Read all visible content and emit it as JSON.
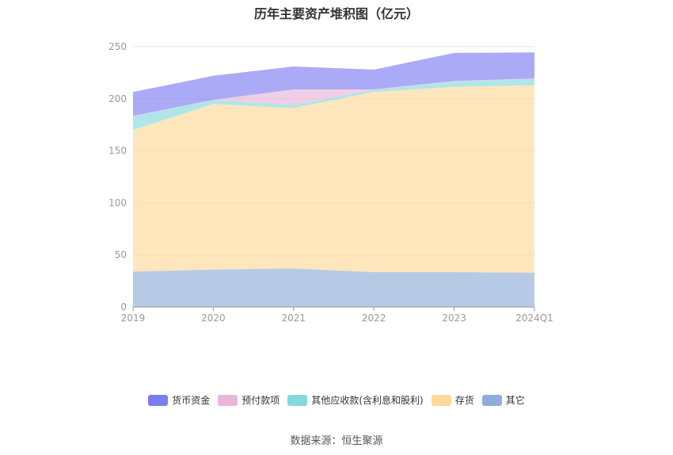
{
  "chart_data": {
    "type": "area",
    "stacked": true,
    "title": "历年主要资产堆积图（亿元）",
    "x": [
      "2019",
      "2020",
      "2021",
      "2022",
      "2023",
      "2024Q1"
    ],
    "ylim": [
      0,
      250
    ],
    "yticks": [
      "0",
      "50",
      "100",
      "150",
      "200",
      "250"
    ],
    "grid": true,
    "legend_position": "bottom",
    "series": [
      {
        "name": "其它",
        "color": "#8fadd9",
        "values": [
          34,
          36,
          37,
          33.5,
          33.5,
          33
        ]
      },
      {
        "name": "存货",
        "color": "#ffd89a",
        "values": [
          136,
          159,
          154,
          173,
          178,
          180
        ]
      },
      {
        "name": "其他应收款(含利息和股利)",
        "color": "#85d8dc",
        "values": [
          13,
          4,
          3,
          2,
          5,
          6
        ]
      },
      {
        "name": "预付款项",
        "color": "#e8b5d8",
        "values": [
          0.5,
          0,
          15,
          0.5,
          0.5,
          0.5
        ]
      },
      {
        "name": "货币资金",
        "color": "#7c7cf2",
        "values": [
          23,
          23,
          22,
          19,
          27,
          25
        ]
      }
    ],
    "legend_order": [
      "货币资金",
      "预付款项",
      "其他应收款(含利息和股利)",
      "存货",
      "其它"
    ]
  },
  "source": "数据来源：恒生聚源"
}
